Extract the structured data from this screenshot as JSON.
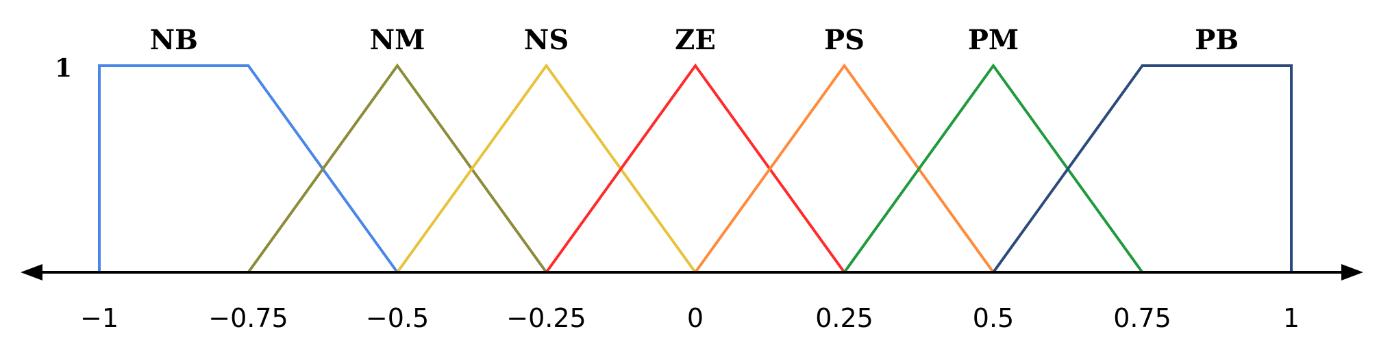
{
  "chart_data": {
    "type": "line",
    "title": "",
    "xlabel": "",
    "ylabel": "",
    "xlim": [
      -1,
      1
    ],
    "ylim": [
      0,
      1
    ],
    "y_tick_label": "1",
    "x_ticks": [
      -1,
      -0.75,
      -0.5,
      -0.25,
      0,
      0.25,
      0.5,
      0.75,
      1
    ],
    "x_tick_labels": [
      "−1",
      "−0.75",
      "−0.5",
      "−0.25",
      "0",
      "0.25",
      "0.5",
      "0.75",
      "1"
    ],
    "series": [
      {
        "name": "NB",
        "color": "#4a86e8",
        "points": [
          [
            -1,
            0
          ],
          [
            -1,
            1
          ],
          [
            -0.75,
            1
          ],
          [
            -0.5,
            0
          ]
        ]
      },
      {
        "name": "NM",
        "color": "#8b8b3a",
        "points": [
          [
            -0.75,
            0
          ],
          [
            -0.5,
            1
          ],
          [
            -0.25,
            0
          ]
        ]
      },
      {
        "name": "NS",
        "color": "#e8c23a",
        "points": [
          [
            -0.5,
            0
          ],
          [
            -0.25,
            1
          ],
          [
            0,
            0
          ]
        ]
      },
      {
        "name": "ZE",
        "color": "#ff2a2a",
        "points": [
          [
            -0.25,
            0
          ],
          [
            0,
            1
          ],
          [
            0.25,
            0
          ]
        ]
      },
      {
        "name": "PS",
        "color": "#ff8a3a",
        "points": [
          [
            0,
            0
          ],
          [
            0.25,
            1
          ],
          [
            0.5,
            0
          ]
        ]
      },
      {
        "name": "PM",
        "color": "#1f9a3e",
        "points": [
          [
            0.25,
            0
          ],
          [
            0.5,
            1
          ],
          [
            0.75,
            0
          ]
        ]
      },
      {
        "name": "PB",
        "color": "#2c4a7c",
        "points": [
          [
            0.5,
            0
          ],
          [
            0.75,
            1
          ],
          [
            1,
            1
          ],
          [
            1,
            0
          ]
        ]
      }
    ]
  }
}
